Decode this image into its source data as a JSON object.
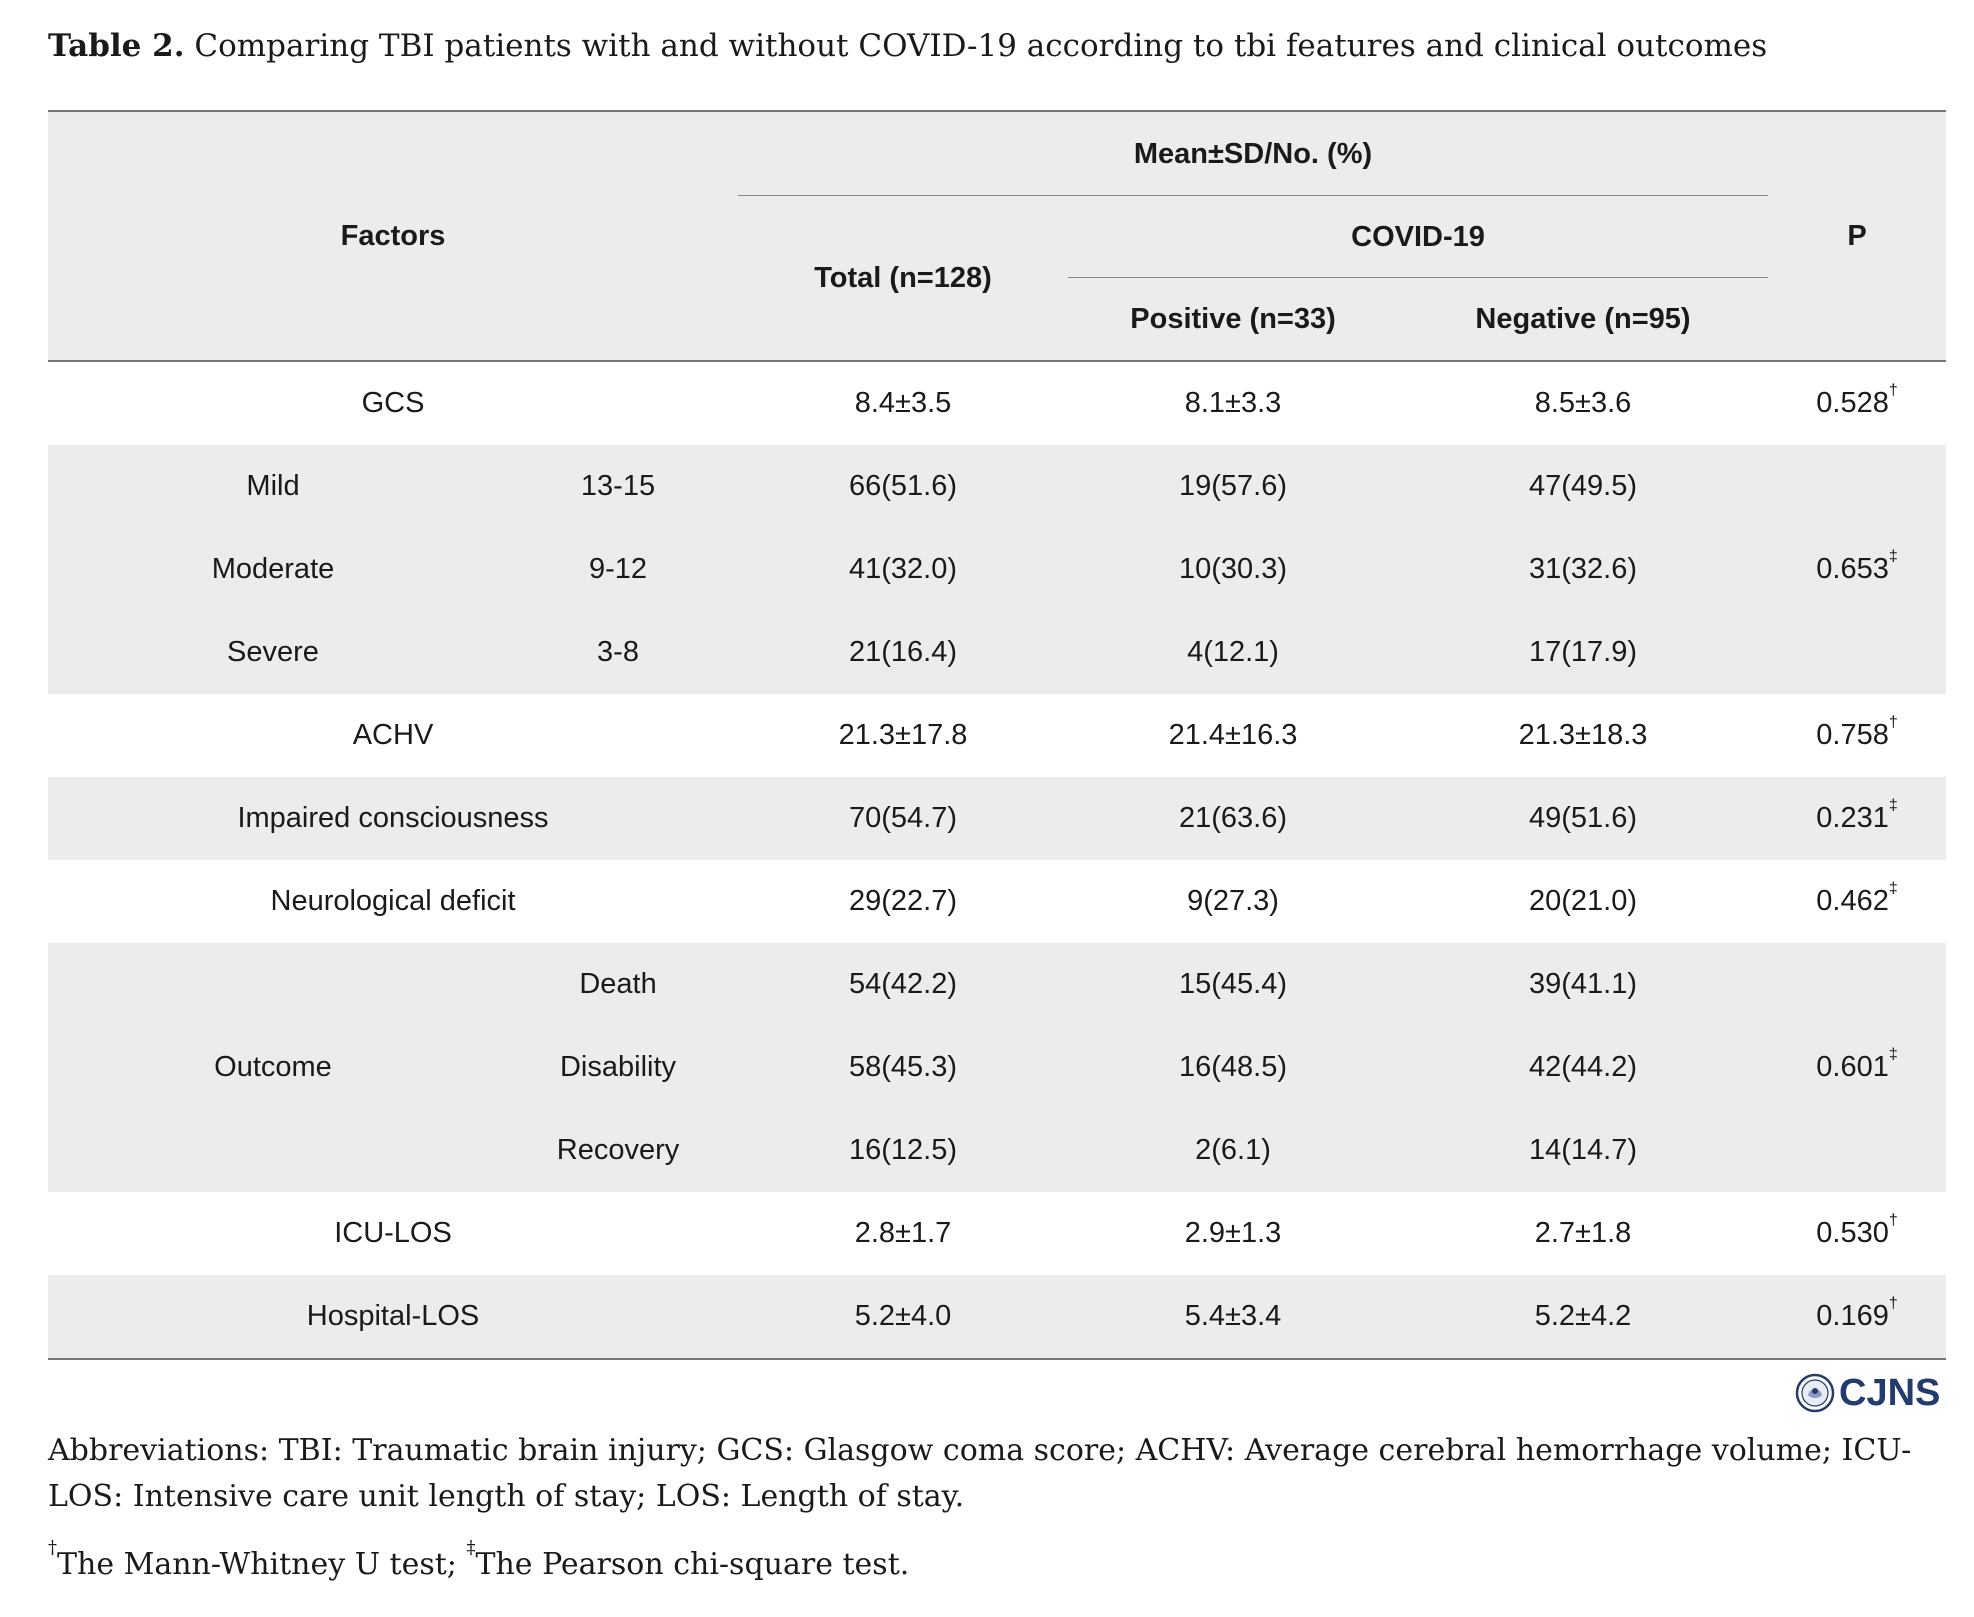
{
  "caption": {
    "label": "Table 2.",
    "text": "Comparing TBI patients with and without COVID-19 according to tbi features and clinical outcomes"
  },
  "header": {
    "factors": "Factors",
    "mean_sd": "Mean±SD/No. (%)",
    "total": "Total (n=128)",
    "covid": "COVID-19",
    "positive": "Positive (n=33)",
    "negative": "Negative (n=95)",
    "p": "P"
  },
  "rows": {
    "gcs": {
      "label": "GCS",
      "total": "8.4±3.5",
      "positive": "8.1±3.3",
      "negative": "8.5±3.6",
      "p": "0.528",
      "mark": "†"
    },
    "mild": {
      "label": "Mild",
      "range": "13-15",
      "total": "66(51.6)",
      "positive": "19(57.6)",
      "negative": "47(49.5)"
    },
    "moderate": {
      "label": "Moderate",
      "range": "9-12",
      "total": "41(32.0)",
      "positive": "10(30.3)",
      "negative": "31(32.6)"
    },
    "severe": {
      "label": "Severe",
      "range": "3-8",
      "total": "21(16.4)",
      "positive": "4(12.1)",
      "negative": "17(17.9)"
    },
    "gcs_group_p": {
      "p": "0.653",
      "mark": "‡"
    },
    "achv": {
      "label": "ACHV",
      "total": "21.3±17.8",
      "positive": "21.4±16.3",
      "negative": "21.3±18.3",
      "p": "0.758",
      "mark": "†"
    },
    "impaired": {
      "label": "Impaired consciousness",
      "total": "70(54.7)",
      "positive": "21(63.6)",
      "negative": "49(51.6)",
      "p": "0.231",
      "mark": "‡"
    },
    "neuro": {
      "label": "Neurological deficit",
      "total": "29(22.7)",
      "positive": "9(27.3)",
      "negative": "20(21.0)",
      "p": "0.462",
      "mark": "‡"
    },
    "outcome": {
      "label": "Outcome",
      "p": "0.601",
      "mark": "‡"
    },
    "death": {
      "label": "Death",
      "total": "54(42.2)",
      "positive": "15(45.4)",
      "negative": "39(41.1)"
    },
    "disability": {
      "label": "Disability",
      "total": "58(45.3)",
      "positive": "16(48.5)",
      "negative": "42(44.2)"
    },
    "recovery": {
      "label": "Recovery",
      "total": "16(12.5)",
      "positive": "2(6.1)",
      "negative": "14(14.7)"
    },
    "icu": {
      "label": "ICU-LOS",
      "total": "2.8±1.7",
      "positive": "2.9±1.3",
      "negative": "2.7±1.8",
      "p": "0.530",
      "mark": "†"
    },
    "hospital": {
      "label": "Hospital-LOS",
      "total": "5.2±4.0",
      "positive": "5.4±3.4",
      "negative": "5.2±4.2",
      "p": "0.169",
      "mark": "†"
    }
  },
  "logo": {
    "text": "CJNS",
    "icon": "journal-seal-icon"
  },
  "notes": {
    "abbreviations": "Abbreviations: TBI: Traumatic brain injury; GCS: Glasgow coma score; ACHV: Average cerebral hemorrhage volume; ICU-LOS: Intensive care unit length of stay; LOS: Length of stay.",
    "mark1": "†",
    "test1": "The Mann-Whitney U test; ",
    "mark2": "‡",
    "test2": "The Pearson chi-square test."
  }
}
